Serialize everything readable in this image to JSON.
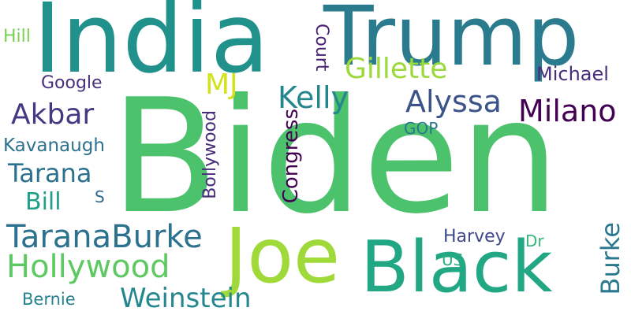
{
  "words": {
    "biden": {
      "text": "Biden",
      "color": "#4cc26c"
    },
    "india": {
      "text": "India",
      "color": "#21918c"
    },
    "trump": {
      "text": "Trump",
      "color": "#2a7b8e"
    },
    "black": {
      "text": "Black",
      "color": "#22a785"
    },
    "joe": {
      "text": "Joe",
      "color": "#9fda3a"
    },
    "taranaburke": {
      "text": "TaranaBurke",
      "color": "#2c718e"
    },
    "hollywood": {
      "text": "Hollywood",
      "color": "#5ec962"
    },
    "weinstein": {
      "text": "Weinstein",
      "color": "#24878e"
    },
    "gillette": {
      "text": "Gillette",
      "color": "#9bd93c"
    },
    "alyssa": {
      "text": "Alyssa",
      "color": "#3b528b"
    },
    "milano": {
      "text": "Milano",
      "color": "#440154"
    },
    "kelly": {
      "text": "Kelly",
      "color": "#24878e"
    },
    "akbar": {
      "text": "Akbar",
      "color": "#453781"
    },
    "tarana": {
      "text": "Tarana",
      "color": "#2c728e"
    },
    "bill": {
      "text": "Bill",
      "color": "#1f9e89"
    },
    "kavanaugh": {
      "text": "Kavanaugh",
      "color": "#2c718e"
    },
    "google": {
      "text": "Google",
      "color": "#46327e"
    },
    "mj": {
      "text": "MJ",
      "color": "#d2e21b"
    },
    "michael": {
      "text": "Michael",
      "color": "#472d7b"
    },
    "hill": {
      "text": "Hill",
      "color": "#7ad151"
    },
    "court": {
      "text": "Court",
      "color": "#482173"
    },
    "congress": {
      "text": "Congress",
      "color": "#440154"
    },
    "bollywood": {
      "text": "Bollywood",
      "color": "#472c7a"
    },
    "burke": {
      "text": "Burke",
      "color": "#2a788e"
    },
    "harvey": {
      "text": "Harvey",
      "color": "#3e4989"
    },
    "gop": {
      "text": "GOP",
      "color": "#2a788e"
    },
    "dr": {
      "text": "Dr",
      "color": "#35b779"
    },
    "us": {
      "text": "US",
      "color": "#27ad81"
    },
    "s": {
      "text": "S",
      "color": "#31688e"
    },
    "bernie": {
      "text": "Bernie",
      "color": "#26828e"
    }
  }
}
